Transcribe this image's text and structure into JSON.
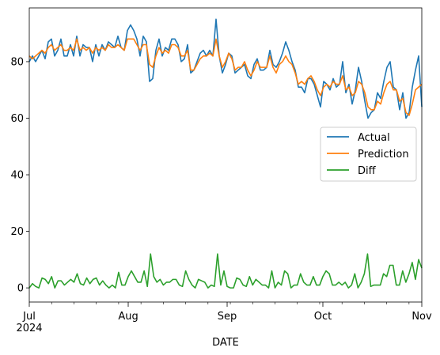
{
  "chart_data": {
    "type": "line",
    "title": "",
    "xlabel": "DATE",
    "ylabel": "",
    "x_start": "2024-07-01",
    "x_end": "2024-11-01",
    "xlim_days": [
      0,
      123
    ],
    "ylim": [
      -5,
      99
    ],
    "yticks": [
      0,
      20,
      40,
      60,
      80
    ],
    "xticks": [
      {
        "day": 0,
        "label": "Jul",
        "sublabel": "2024"
      },
      {
        "day": 31,
        "label": "Aug",
        "sublabel": ""
      },
      {
        "day": 62,
        "label": "Sep",
        "sublabel": ""
      },
      {
        "day": 92,
        "label": "Oct",
        "sublabel": ""
      },
      {
        "day": 123,
        "label": "Nov",
        "sublabel": ""
      }
    ],
    "minor_xtick_days": [
      7,
      14,
      21,
      28,
      35,
      42,
      49,
      56,
      63,
      70,
      77,
      84,
      91,
      98,
      105,
      112,
      119
    ],
    "legend_position": "center-right",
    "series": [
      {
        "name": "Actual",
        "color": "#1f77b4",
        "values": [
          80,
          82,
          80,
          82,
          84,
          81,
          87,
          88,
          82,
          84,
          88,
          82,
          82,
          86,
          82,
          89,
          82,
          86,
          85,
          85,
          80,
          86,
          82,
          86,
          84,
          87,
          86,
          85,
          89,
          85,
          84,
          91,
          93,
          91,
          88,
          82,
          89,
          87,
          73,
          74,
          84,
          88,
          82,
          85,
          84,
          88,
          88,
          86,
          80,
          81,
          86,
          76,
          77,
          80,
          83,
          84,
          82,
          84,
          82,
          95,
          82,
          76,
          79,
          83,
          82,
          76,
          77,
          78,
          79,
          75,
          74,
          79,
          81,
          77,
          77,
          78,
          84,
          79,
          78,
          80,
          83,
          87,
          84,
          80,
          77,
          71,
          71,
          69,
          74,
          74,
          72,
          68,
          64,
          73,
          72,
          70,
          74,
          71,
          72,
          80,
          69,
          72,
          65,
          70,
          78,
          73,
          66,
          60,
          62,
          63,
          69,
          67,
          73,
          78,
          80,
          71,
          70,
          63,
          69,
          60,
          62,
          71,
          77,
          82,
          64
        ],
        "markers": []
      },
      {
        "name": "Prediction",
        "color": "#ff7f0e",
        "values": [
          82,
          81,
          82,
          83,
          84,
          83,
          85,
          86,
          84,
          85,
          86,
          84,
          84,
          85,
          84,
          88,
          84,
          85,
          84,
          85,
          83,
          85,
          84,
          85,
          84,
          86,
          85,
          85,
          86,
          85,
          84,
          88,
          88,
          88,
          86,
          84,
          86,
          86,
          79,
          78,
          82,
          85,
          83,
          84,
          83,
          86,
          86,
          85,
          82,
          82,
          84,
          77,
          77,
          79,
          81,
          82,
          82,
          83,
          82,
          88,
          82,
          78,
          80,
          83,
          81,
          77,
          78,
          78,
          80,
          77,
          75,
          77,
          80,
          78,
          78,
          78,
          82,
          78,
          76,
          79,
          80,
          82,
          80,
          79,
          76,
          72,
          73,
          72,
          74,
          75,
          73,
          70,
          68,
          71,
          72,
          71,
          73,
          72,
          72,
          75,
          70,
          71,
          68,
          69,
          73,
          72,
          69,
          64,
          63,
          63,
          66,
          65,
          69,
          72,
          73,
          70,
          70,
          66,
          67,
          62,
          61,
          65,
          70,
          71,
          72
        ],
        "markers": []
      },
      {
        "name": "Diff",
        "color": "#2ca02c",
        "values": [
          0,
          1.5,
          0.5,
          0,
          3.5,
          3,
          1.5,
          4,
          0,
          2.5,
          2.5,
          1,
          2,
          3,
          2,
          5,
          1.5,
          1,
          3.5,
          1.5,
          3,
          3.5,
          1,
          2.5,
          1,
          0,
          1,
          0,
          5.5,
          1,
          1,
          4,
          6,
          4,
          2,
          2,
          6,
          0.5,
          12,
          4,
          2,
          3,
          1,
          2,
          2,
          3,
          3,
          1,
          0.5,
          6,
          3,
          1,
          0,
          3,
          2.5,
          2,
          0,
          1,
          0.5,
          12,
          1,
          6,
          0.5,
          0,
          0,
          3.5,
          3,
          1,
          0.5,
          4,
          1,
          3,
          2,
          1,
          1,
          0,
          6,
          0,
          2,
          1,
          6,
          5,
          0,
          1,
          1,
          5,
          2,
          1,
          1,
          4,
          1,
          1,
          4,
          6,
          5,
          1,
          1,
          2,
          1,
          2,
          0,
          1,
          5,
          0,
          2,
          5,
          12,
          0.5,
          1,
          1,
          1,
          5,
          4,
          8,
          8,
          1,
          1,
          6,
          2,
          5,
          9,
          3,
          10,
          7
        ]
      }
    ]
  },
  "legend": {
    "entries": [
      "Actual",
      "Prediction",
      "Diff"
    ]
  }
}
